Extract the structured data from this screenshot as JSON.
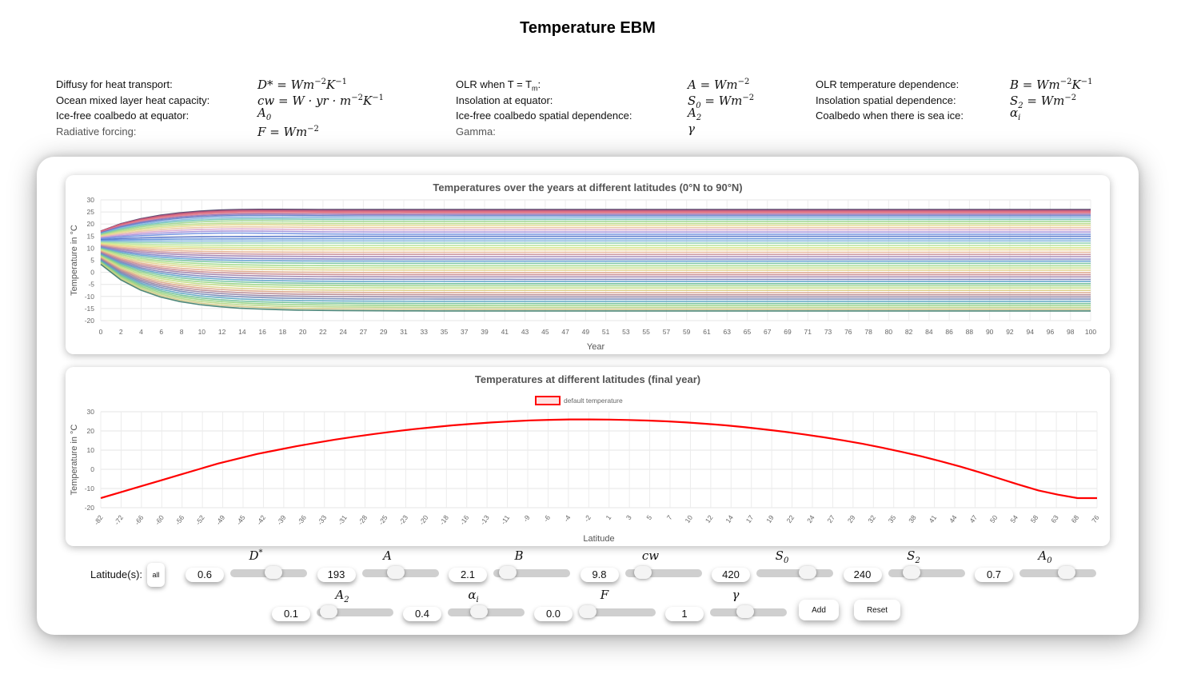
{
  "page": {
    "title": "Temperature EBM"
  },
  "definitions": [
    {
      "label": "Diffusy for heat transport:",
      "sym_main": "D",
      "sym_rest": "* = Wm",
      "sup1": "−2",
      "mid": "K",
      "sup2": "−1",
      "sub": ""
    },
    {
      "label": "OLR when T = T",
      "label_sub": "m",
      "label_end": ":",
      "sym_main": "A",
      "sym_rest": " = Wm",
      "sup1": "−2",
      "mid": "",
      "sup2": "",
      "sub": ""
    },
    {
      "label": "OLR temperature dependence:",
      "sym_main": "B",
      "sym_rest": " = Wm",
      "sup1": "−2",
      "mid": "K",
      "sup2": "−1",
      "sub": ""
    },
    {
      "label": "Ocean mixed layer heat capacity:",
      "sym_main": "cw",
      "sym_rest": " = W · yr · m",
      "sup1": "−2",
      "mid": "K",
      "sup2": "−1",
      "sub": ""
    },
    {
      "label": "Insolation at equator:",
      "sym_main": "S",
      "sub": "0",
      "sym_rest": " = Wm",
      "sup1": "−2",
      "mid": "",
      "sup2": ""
    },
    {
      "label": "Insolation spatial dependence:",
      "sym_main": "S",
      "sub": "2",
      "sym_rest": " = Wm",
      "sup1": "−2",
      "mid": "",
      "sup2": ""
    },
    {
      "label": "Ice-free coalbedo at equator:",
      "sym_main": "A",
      "sub": "0",
      "sym_rest": "",
      "sup1": "",
      "mid": "",
      "sup2": ""
    },
    {
      "label": "Ice-free coalbedo spatial dependence:",
      "sym_main": "A",
      "sub": "2",
      "sym_rest": "",
      "sup1": "",
      "mid": "",
      "sup2": ""
    },
    {
      "label": "Coalbedo when there is sea ice:",
      "sym_main": "α",
      "sub": "i",
      "sym_rest": "",
      "sup1": "",
      "mid": "",
      "sup2": ""
    },
    {
      "label": "Radiative forcing:",
      "sym_main": "F",
      "sym_rest": " = Wm",
      "sup1": "−2",
      "mid": "",
      "sup2": "",
      "sub": ""
    },
    {
      "label": "Gamma:",
      "sym_main": "γ",
      "sym_rest": "",
      "sup1": "",
      "mid": "",
      "sup2": "",
      "sub": ""
    }
  ],
  "controls": {
    "latitude_label": "Latitude(s):",
    "latitude_button": "all",
    "add_label": "Add",
    "reset_label": "Reset",
    "params": [
      {
        "name": "D",
        "sup": "*",
        "sub": "",
        "value": "0.6",
        "fraction": 0.58
      },
      {
        "name": "A",
        "sup": "",
        "sub": "",
        "value": "193",
        "fraction": 0.42
      },
      {
        "name": "B",
        "sup": "",
        "sub": "",
        "value": "2.1",
        "fraction": 0.1
      },
      {
        "name": "cw",
        "sup": "",
        "sub": "",
        "value": "9.8",
        "fraction": 0.15
      },
      {
        "name": "S",
        "sup": "",
        "sub": "0",
        "value": "420",
        "fraction": 0.72
      },
      {
        "name": "S",
        "sup": "",
        "sub": "2",
        "value": "240",
        "fraction": 0.25
      },
      {
        "name": "A",
        "sup": "",
        "sub": "0",
        "value": "0.7",
        "fraction": 0.65
      },
      {
        "name": "A",
        "sup": "",
        "sub": "2",
        "value": "0.1",
        "fraction": 0.05
      },
      {
        "name": "α",
        "sup": "",
        "sub": "i",
        "value": "0.4",
        "fraction": 0.38
      },
      {
        "name": "F",
        "sup": "",
        "sub": "",
        "value": "0.0",
        "fraction": 0.0
      },
      {
        "name": "γ",
        "sup": "",
        "sub": "",
        "value": "1",
        "fraction": 0.45
      }
    ]
  },
  "chart_data": [
    {
      "type": "line",
      "title": "Temperatures over the years at different latitudes (0°N to 90°N)",
      "xlabel": "Year",
      "ylabel": "Temperature in °C",
      "xlim": [
        0,
        100
      ],
      "ylim": [
        -20,
        30
      ],
      "x_ticks": [
        0,
        2,
        4,
        6,
        8,
        10,
        12,
        14,
        16,
        18,
        20,
        22,
        24,
        27,
        29,
        31,
        33,
        35,
        37,
        39,
        41,
        43,
        45,
        47,
        49,
        51,
        53,
        55,
        57,
        59,
        61,
        63,
        65,
        67,
        69,
        71,
        73,
        76,
        78,
        80,
        82,
        84,
        86,
        88,
        90,
        92,
        94,
        96,
        98,
        100
      ],
      "y_ticks": [
        -20,
        -15,
        -10,
        -5,
        0,
        5,
        10,
        15,
        20,
        25,
        30
      ],
      "grid": true,
      "series_start": [
        17,
        17,
        17,
        16.8,
        16.6,
        16.4,
        16.2,
        16,
        15.8,
        15.5,
        15.2,
        15,
        14.7,
        14.4,
        14.1,
        13.8,
        13.5,
        13.2,
        12.9,
        12.6,
        12.3,
        12,
        11.7,
        11.4,
        11.1,
        10.8,
        10.5,
        10.2,
        9.9,
        9.6,
        9.3,
        9,
        8.7,
        8.4,
        8.1,
        7.8,
        7.5,
        7.2,
        6.9,
        6.6,
        6.3,
        6,
        5.7,
        5.4,
        5.1,
        4.8,
        4.5,
        4.2,
        3.9,
        3.6,
        3.3
      ],
      "series_final": [
        26,
        25.8,
        25.5,
        25.1,
        24.6,
        24,
        23.4,
        22.6,
        21.9,
        21.1,
        20.2,
        19.4,
        18.5,
        17.6,
        16.7,
        15.8,
        14.9,
        13.9,
        13,
        12.1,
        11.1,
        10.2,
        9.3,
        8.3,
        7.4,
        6.5,
        5.5,
        4.6,
        3.7,
        2.7,
        1.8,
        0.9,
        -0.1,
        -1,
        -1.9,
        -2.9,
        -3.8,
        -4.7,
        -5.6,
        -6.5,
        -7.5,
        -8.4,
        -9.3,
        -10.2,
        -11.1,
        -12,
        -12.9,
        -13.7,
        -14.5,
        -15.3,
        -16
      ]
    },
    {
      "type": "line",
      "title": "Temperatures at different latitudes (final year)",
      "xlabel": "Latitude",
      "ylabel": "Temperature in °C",
      "legend": "top",
      "ylim": [
        -20,
        30
      ],
      "y_ticks": [
        -20,
        -10,
        0,
        10,
        20,
        30
      ],
      "grid": true,
      "x_tick_labels": [
        "-82",
        "-72",
        "-66",
        "-60",
        "-56",
        "-52",
        "-49",
        "-45",
        "-42",
        "-39",
        "-36",
        "-33",
        "-31",
        "-28",
        "-25",
        "-23",
        "-20",
        "-18",
        "-16",
        "-13",
        "-11",
        "-9",
        "-6",
        "-4",
        "-2",
        "1",
        "3",
        "5",
        "7",
        "10",
        "12",
        "14",
        "17",
        "19",
        "22",
        "24",
        "27",
        "29",
        "32",
        "35",
        "38",
        "41",
        "44",
        "47",
        "50",
        "54",
        "58",
        "63",
        "68",
        "76"
      ],
      "series": [
        {
          "name": "default temperature",
          "color": "#ff0000",
          "x": [
            -90,
            -82,
            -72,
            -66,
            -60,
            -56,
            -52,
            -49,
            -45,
            -42,
            -39,
            -36,
            -33,
            -31,
            -28,
            -25,
            -23,
            -20,
            -18,
            -16,
            -13,
            -11,
            -9,
            -6,
            -4,
            -2,
            1,
            3,
            5,
            7,
            10,
            12,
            14,
            17,
            19,
            22,
            24,
            27,
            29,
            32,
            35,
            38,
            41,
            44,
            47,
            50,
            54,
            58,
            63,
            68,
            76,
            90
          ],
          "values": [
            -15,
            -12,
            -9,
            -6,
            -3,
            0,
            3,
            5.5,
            8,
            10,
            12,
            13.8,
            15.5,
            17,
            18.4,
            19.7,
            20.9,
            21.9,
            22.9,
            23.7,
            24.4,
            25,
            25.5,
            25.8,
            26,
            26,
            25.9,
            25.7,
            25.4,
            25,
            24.4,
            23.7,
            22.9,
            21.9,
            20.8,
            19.6,
            18.2,
            16.7,
            15.1,
            13.3,
            11.3,
            9.1,
            6.8,
            4.2,
            1.4,
            -1.6,
            -4.8,
            -8,
            -11,
            -13.2,
            -15,
            -15
          ]
        }
      ]
    }
  ]
}
